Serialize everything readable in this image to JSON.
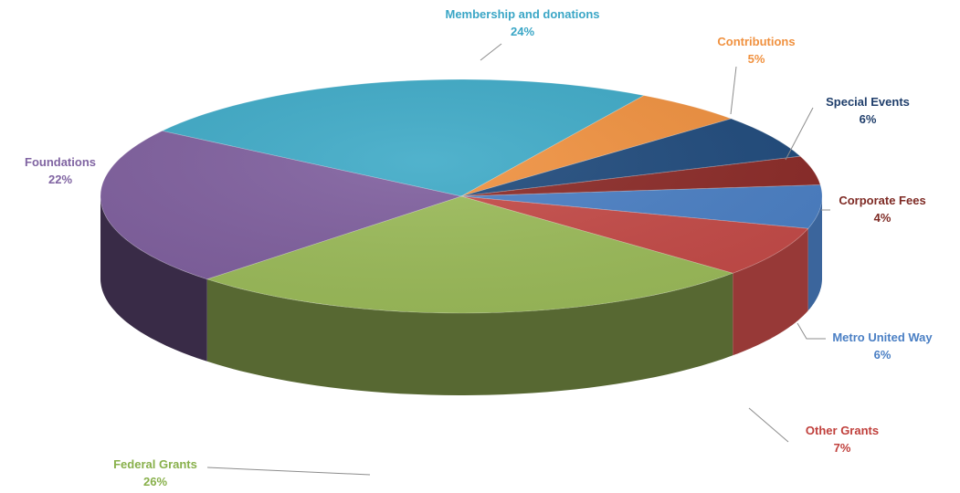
{
  "chart_data": {
    "type": "pie",
    "title": "",
    "start_category": "Membership and donations",
    "slices": [
      {
        "label": "Membership and donations",
        "value": 24,
        "value_label": "24%",
        "color": "#3eaac7"
      },
      {
        "label": "Contributions",
        "value": 5,
        "value_label": "5%",
        "color": "#f0913f"
      },
      {
        "label": "Special Events",
        "value": 6,
        "value_label": "6%",
        "color": "#1f4a7c"
      },
      {
        "label": "Corporate Fees",
        "value": 4,
        "value_label": "4%",
        "color": "#8b2a27"
      },
      {
        "label": "Metro United Way",
        "value": 6,
        "value_label": "6%",
        "color": "#4a7fc4"
      },
      {
        "label": "Other Grants",
        "value": 7,
        "value_label": "7%",
        "color": "#c44a47"
      },
      {
        "label": "Federal Grants",
        "value": 26,
        "value_label": "26%",
        "color": "#9bbb59"
      },
      {
        "label": "Foundations",
        "value": 22,
        "value_label": "22%",
        "color": "#7f5f9e"
      }
    ],
    "label_colors": {
      "Membership and donations": "#3aa6c6",
      "Contributions": "#f0913f",
      "Special Events": "#1f3e6b",
      "Corporate Fees": "#7e2a24",
      "Metro United Way": "#4a7fc4",
      "Other Grants": "#c0403c",
      "Federal Grants": "#88b04b",
      "Foundations": "#8064a2"
    },
    "style": "3d-exploded-none",
    "legend": "none"
  }
}
